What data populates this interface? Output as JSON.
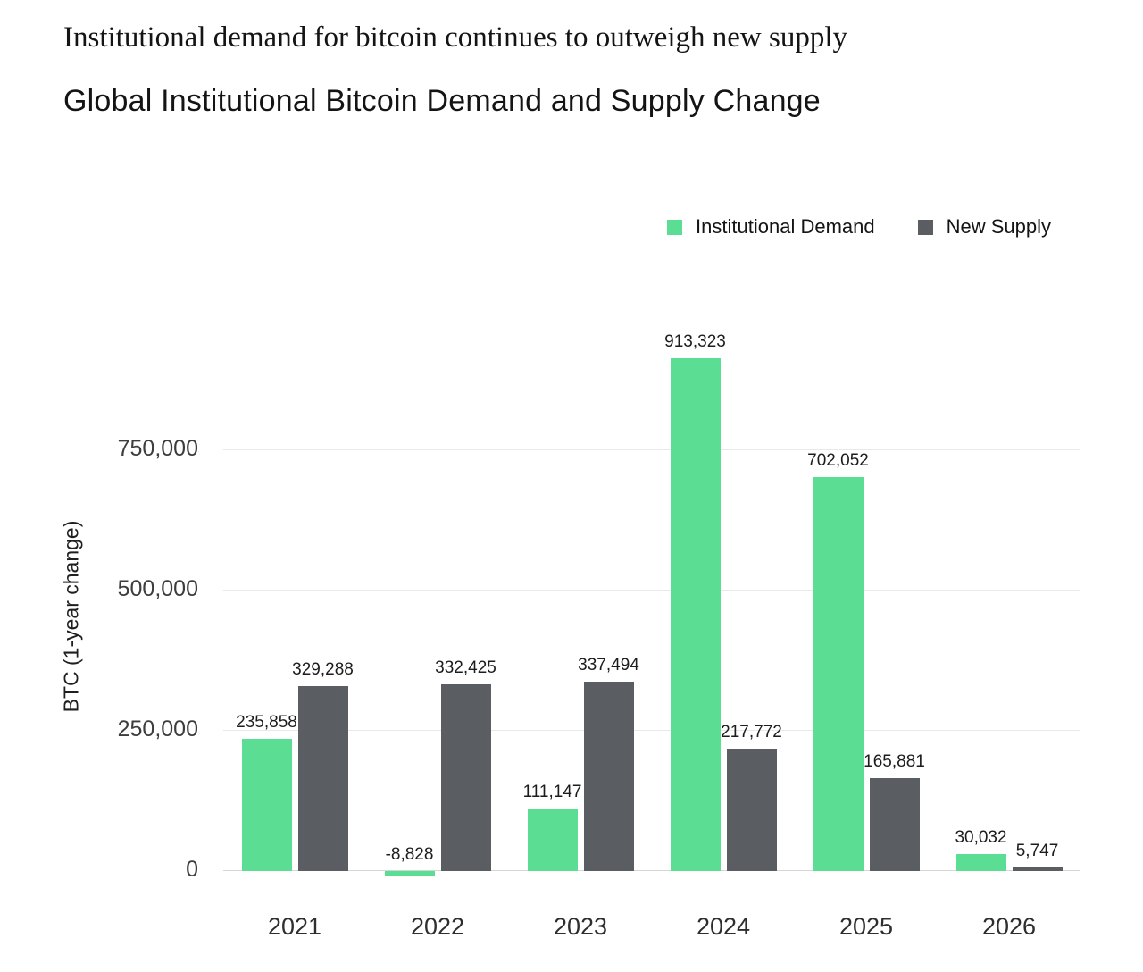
{
  "header": {
    "headline": "Institutional demand for bitcoin continues to outweigh new supply",
    "title": "Global Institutional Bitcoin Demand and Supply Change"
  },
  "legend": [
    {
      "label": "Institutional Demand",
      "color": "#5BDE94"
    },
    {
      "label": "New Supply",
      "color": "#5A5E62"
    }
  ],
  "chart_data": {
    "type": "bar",
    "title": "Global Institutional Bitcoin Demand and Supply Change",
    "subtitle": "Institutional demand for bitcoin continues to outweigh new supply",
    "xlabel": "",
    "ylabel": "BTC (1-year change)",
    "categories": [
      "2021",
      "2022",
      "2023",
      "2024",
      "2025",
      "2026"
    ],
    "series": [
      {
        "name": "Institutional Demand",
        "color": "#5BDE94",
        "values": [
          235858,
          -8828,
          111147,
          913323,
          702052,
          30032
        ],
        "labels": [
          "235,858",
          "-8,828",
          "111,147",
          "913,323",
          "702,052",
          "30,032"
        ]
      },
      {
        "name": "New Supply",
        "color": "#5A5E62",
        "values": [
          329288,
          332425,
          337494,
          217772,
          165881,
          5747
        ],
        "labels": [
          "329,288",
          "332,425",
          "337,494",
          "217,772",
          "165,881",
          "5,747"
        ]
      }
    ],
    "yticks": [
      {
        "value": 0,
        "label": "0"
      },
      {
        "value": 250000,
        "label": "250,000"
      },
      {
        "value": 500000,
        "label": "500,000"
      },
      {
        "value": 750000,
        "label": "750,000"
      }
    ],
    "ylim": [
      -20000,
      950000
    ],
    "grid": true,
    "legend_position": "top-right"
  }
}
